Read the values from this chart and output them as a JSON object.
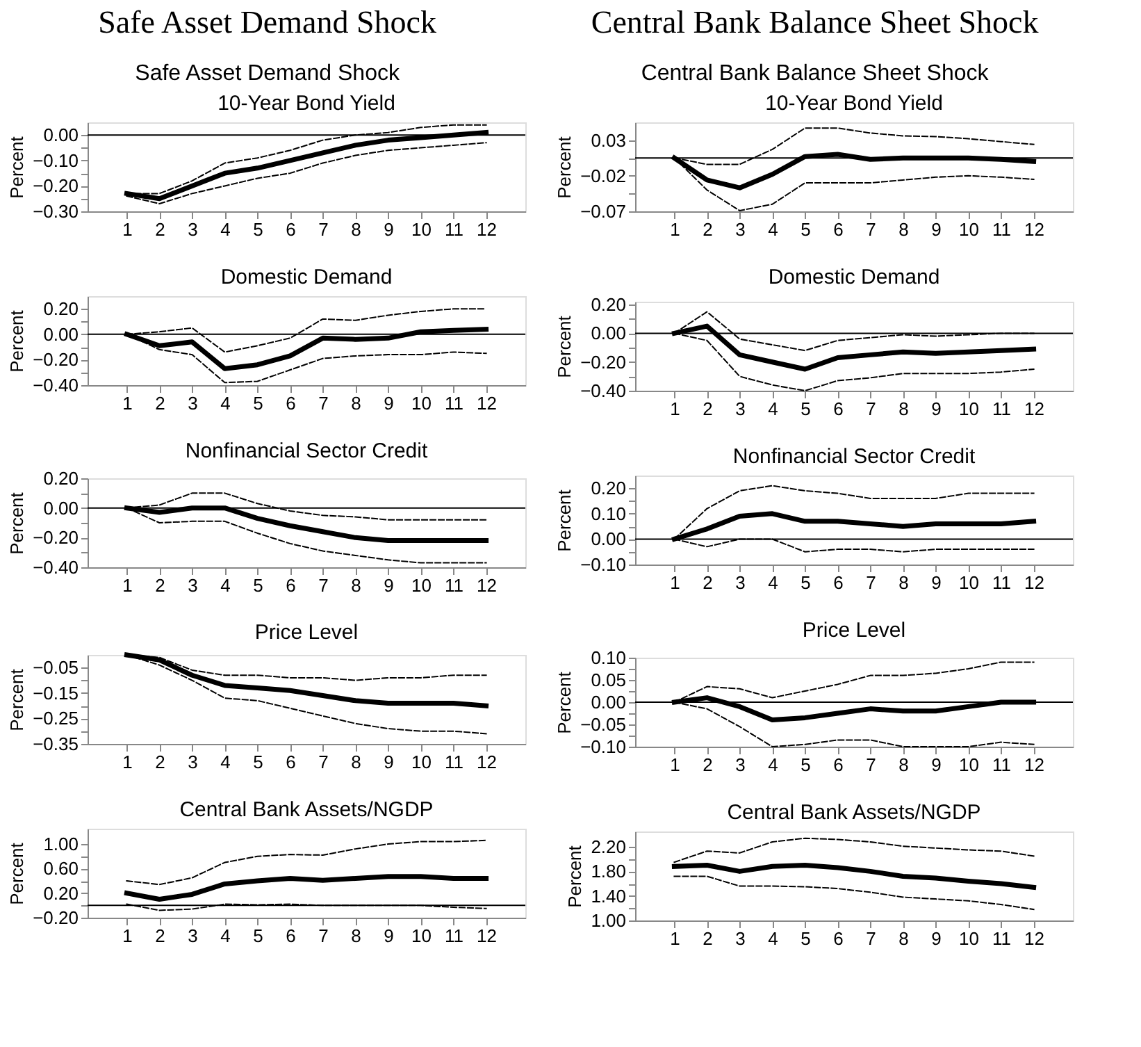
{
  "chart_data": [
    {
      "type": "line",
      "annotations": [
        "Safe Asset Demand Shock",
        "Safe Asset Demand Shock"
      ],
      "title": "10-Year Bond Yield",
      "ylabel": "Percent",
      "x": [
        1,
        2,
        3,
        4,
        5,
        6,
        7,
        8,
        9,
        10,
        11,
        12
      ],
      "xlim": [
        -0.2,
        13.2
      ],
      "xticks": [
        1,
        2,
        3,
        4,
        5,
        6,
        7,
        8,
        9,
        10,
        11,
        12
      ],
      "ylim": [
        -0.3,
        0.05
      ],
      "yticks": [
        {
          "value": 0,
          "label": "0.00"
        },
        {
          "value": -0.1,
          "label": "−0.10"
        },
        {
          "value": -0.2,
          "label": "−0.20"
        },
        {
          "value": -0.3,
          "label": "−0.30"
        },
        {
          "value": -0.05,
          "label": null
        },
        {
          "value": -0.15,
          "label": null
        },
        {
          "value": -0.25,
          "label": null
        }
      ],
      "ref_lines": [
        {
          "axis": "y",
          "value": 0
        }
      ],
      "grid": false,
      "series": [
        {
          "color": "#000000",
          "line_style": "dashed",
          "values": [
            -0.23,
            -0.23,
            -0.18,
            -0.11,
            -0.09,
            -0.06,
            -0.02,
            0.0,
            0.01,
            0.03,
            0.04,
            0.04
          ]
        },
        {
          "color": "#000000",
          "line_style": "dashed",
          "values": [
            -0.24,
            -0.27,
            -0.23,
            -0.2,
            -0.17,
            -0.15,
            -0.11,
            -0.08,
            -0.06,
            -0.05,
            -0.04,
            -0.03
          ]
        },
        {
          "color": "#000000",
          "line_style": "solid",
          "values": [
            -0.23,
            -0.25,
            -0.2,
            -0.15,
            -0.13,
            -0.1,
            -0.07,
            -0.04,
            -0.02,
            -0.01,
            0.0,
            0.01
          ]
        }
      ]
    },
    {
      "type": "line",
      "title": "Domestic Demand",
      "ylabel": "Percent",
      "x": [
        1,
        2,
        3,
        4,
        5,
        6,
        7,
        8,
        9,
        10,
        11,
        12
      ],
      "xlim": [
        -0.2,
        13.2
      ],
      "xticks": [
        1,
        2,
        3,
        4,
        5,
        6,
        7,
        8,
        9,
        10,
        11,
        12
      ],
      "ylim": [
        -0.4,
        0.3
      ],
      "yticks": [
        {
          "value": 0.2,
          "label": "0.20"
        },
        {
          "value": 0,
          "label": "0.00"
        },
        {
          "value": -0.2,
          "label": "−0.20"
        },
        {
          "value": -0.4,
          "label": "−0.40"
        },
        {
          "value": 0.1,
          "label": null
        },
        {
          "value": -0.1,
          "label": null
        },
        {
          "value": -0.3,
          "label": null
        }
      ],
      "ref_lines": [
        {
          "axis": "y",
          "value": 0
        }
      ],
      "grid": false,
      "series": [
        {
          "color": "#000000",
          "line_style": "dashed",
          "values": [
            0.0,
            0.02,
            0.05,
            -0.14,
            -0.09,
            -0.03,
            0.12,
            0.11,
            0.15,
            0.18,
            0.2,
            0.2
          ]
        },
        {
          "color": "#000000",
          "line_style": "dashed",
          "values": [
            0.0,
            -0.12,
            -0.16,
            -0.38,
            -0.37,
            -0.28,
            -0.19,
            -0.17,
            -0.16,
            -0.16,
            -0.14,
            -0.15
          ]
        },
        {
          "color": "#000000",
          "line_style": "solid",
          "values": [
            0.0,
            -0.09,
            -0.06,
            -0.27,
            -0.24,
            -0.17,
            -0.03,
            -0.04,
            -0.03,
            0.02,
            0.03,
            0.04
          ]
        }
      ]
    },
    {
      "type": "line",
      "title": "Nonfinancial Sector Credit",
      "ylabel": "Percent",
      "x": [
        1,
        2,
        3,
        4,
        5,
        6,
        7,
        8,
        9,
        10,
        11,
        12
      ],
      "xlim": [
        -0.2,
        13.2
      ],
      "xticks": [
        1,
        2,
        3,
        4,
        5,
        6,
        7,
        8,
        9,
        10,
        11,
        12
      ],
      "ylim": [
        -0.4,
        0.2
      ],
      "yticks": [
        {
          "value": 0.2,
          "label": "0.20"
        },
        {
          "value": 0,
          "label": "0.00"
        },
        {
          "value": -0.2,
          "label": "−0.20"
        },
        {
          "value": -0.4,
          "label": "−0.40"
        },
        {
          "value": 0.1,
          "label": null
        },
        {
          "value": -0.1,
          "label": null
        },
        {
          "value": -0.3,
          "label": null
        }
      ],
      "ref_lines": [
        {
          "axis": "y",
          "value": 0
        }
      ],
      "grid": false,
      "series": [
        {
          "color": "#000000",
          "line_style": "dashed",
          "values": [
            0.0,
            0.02,
            0.1,
            0.1,
            0.03,
            -0.02,
            -0.05,
            -0.06,
            -0.08,
            -0.08,
            -0.08,
            -0.08
          ]
        },
        {
          "color": "#000000",
          "line_style": "dashed",
          "values": [
            0.0,
            -0.1,
            -0.09,
            -0.09,
            -0.17,
            -0.24,
            -0.29,
            -0.32,
            -0.35,
            -0.37,
            -0.37,
            -0.37
          ]
        },
        {
          "color": "#000000",
          "line_style": "solid",
          "values": [
            0.0,
            -0.03,
            0.0,
            0.0,
            -0.07,
            -0.12,
            -0.16,
            -0.2,
            -0.22,
            -0.22,
            -0.22,
            -0.22
          ]
        }
      ]
    },
    {
      "type": "line",
      "title": "Price Level",
      "ylabel": "Percent",
      "x": [
        1,
        2,
        3,
        4,
        5,
        6,
        7,
        8,
        9,
        10,
        11,
        12
      ],
      "xlim": [
        -0.2,
        13.2
      ],
      "xticks": [
        1,
        2,
        3,
        4,
        5,
        6,
        7,
        8,
        9,
        10,
        11,
        12
      ],
      "ylim": [
        -0.35,
        0.0
      ],
      "yticks": [
        {
          "value": -0.05,
          "label": "−0.05"
        },
        {
          "value": -0.15,
          "label": "−0.15"
        },
        {
          "value": -0.25,
          "label": "−0.25"
        },
        {
          "value": -0.35,
          "label": "−0.35"
        },
        {
          "value": -0.1,
          "label": null
        },
        {
          "value": -0.2,
          "label": null
        },
        {
          "value": -0.3,
          "label": null
        }
      ],
      "grid": false,
      "series": [
        {
          "color": "#000000",
          "line_style": "dashed",
          "values": [
            0.0,
            -0.01,
            -0.06,
            -0.08,
            -0.08,
            -0.09,
            -0.09,
            -0.1,
            -0.09,
            -0.09,
            -0.08,
            -0.08
          ]
        },
        {
          "color": "#000000",
          "line_style": "dashed",
          "values": [
            0.0,
            -0.04,
            -0.1,
            -0.17,
            -0.18,
            -0.21,
            -0.24,
            -0.27,
            -0.29,
            -0.3,
            -0.3,
            -0.31
          ]
        },
        {
          "color": "#000000",
          "line_style": "solid",
          "values": [
            0.0,
            -0.02,
            -0.08,
            -0.12,
            -0.13,
            -0.14,
            -0.16,
            -0.18,
            -0.19,
            -0.19,
            -0.19,
            -0.2
          ]
        }
      ]
    },
    {
      "type": "line",
      "title": "Central Bank Assets/NGDP",
      "ylabel": "Percent",
      "x": [
        1,
        2,
        3,
        4,
        5,
        6,
        7,
        8,
        9,
        10,
        11,
        12
      ],
      "xlim": [
        -0.2,
        13.2
      ],
      "xticks": [
        1,
        2,
        3,
        4,
        5,
        6,
        7,
        8,
        9,
        10,
        11,
        12
      ],
      "ylim": [
        -0.2,
        1.25
      ],
      "yticks": [
        {
          "value": 1.0,
          "label": "1.00"
        },
        {
          "value": 0.6,
          "label": "0.60"
        },
        {
          "value": 0.2,
          "label": "0.20"
        },
        {
          "value": -0.2,
          "label": "−0.20"
        },
        {
          "value": 0.8,
          "label": null
        },
        {
          "value": 0.4,
          "label": null
        },
        {
          "value": 0.0,
          "label": null
        }
      ],
      "ref_lines": [
        {
          "axis": "y",
          "value": 0
        }
      ],
      "grid": false,
      "series": [
        {
          "color": "#000000",
          "line_style": "dashed",
          "values": [
            0.4,
            0.34,
            0.45,
            0.7,
            0.8,
            0.83,
            0.82,
            0.92,
            1.0,
            1.04,
            1.04,
            1.06
          ]
        },
        {
          "color": "#000000",
          "line_style": "dashed",
          "values": [
            0.02,
            -0.08,
            -0.06,
            0.02,
            0.01,
            0.02,
            0.0,
            0.0,
            0.0,
            0.0,
            -0.03,
            -0.05
          ]
        },
        {
          "color": "#000000",
          "line_style": "solid",
          "values": [
            0.2,
            0.1,
            0.18,
            0.35,
            0.4,
            0.44,
            0.41,
            0.44,
            0.47,
            0.47,
            0.44,
            0.44
          ]
        }
      ]
    },
    {
      "type": "line",
      "annotations": [
        "Central Bank Balance Sheet Shock",
        "Central Bank Balance Sheet Shock"
      ],
      "title": "10-Year Bond Yield",
      "ylabel": "Percent",
      "x": [
        1,
        2,
        3,
        4,
        5,
        6,
        7,
        8,
        9,
        10,
        11,
        12
      ],
      "xlim": [
        -0.2,
        13.2
      ],
      "xticks": [
        1,
        2,
        3,
        4,
        5,
        6,
        7,
        8,
        9,
        10,
        11,
        12
      ],
      "ylim": [
        -0.07,
        0.055
      ],
      "yticks": [
        {
          "value": 0.03,
          "label": "0.03"
        },
        {
          "value": -0.02,
          "label": "−0.02"
        },
        {
          "value": -0.07,
          "label": "−0.07"
        },
        {
          "value": 0.005,
          "label": null
        },
        {
          "value": -0.045,
          "label": null
        }
      ],
      "ref_lines": [
        {
          "axis": "y",
          "value": 0.005
        }
      ],
      "grid": false,
      "series": [
        {
          "color": "#000000",
          "line_style": "dashed",
          "values": [
            0.005,
            -0.004,
            -0.004,
            0.017,
            0.047,
            0.047,
            0.04,
            0.036,
            0.035,
            0.032,
            0.028,
            0.024
          ]
        },
        {
          "color": "#000000",
          "line_style": "dashed",
          "values": [
            0.005,
            -0.04,
            -0.069,
            -0.06,
            -0.03,
            -0.03,
            -0.03,
            -0.026,
            -0.022,
            -0.02,
            -0.022,
            -0.025
          ]
        },
        {
          "color": "#000000",
          "line_style": "solid",
          "values": [
            0.005,
            -0.026,
            -0.037,
            -0.018,
            0.007,
            0.01,
            0.003,
            0.005,
            0.005,
            0.005,
            0.003,
            0.0
          ]
        }
      ]
    },
    {
      "type": "line",
      "title": "Domestic Demand",
      "ylabel": "Percent",
      "x": [
        1,
        2,
        3,
        4,
        5,
        6,
        7,
        8,
        9,
        10,
        11,
        12
      ],
      "xlim": [
        -0.2,
        13.2
      ],
      "xticks": [
        1,
        2,
        3,
        4,
        5,
        6,
        7,
        8,
        9,
        10,
        11,
        12
      ],
      "ylim": [
        -0.4,
        0.22
      ],
      "yticks": [
        {
          "value": 0.2,
          "label": "0.20"
        },
        {
          "value": 0,
          "label": "0.00"
        },
        {
          "value": -0.2,
          "label": "−0.20"
        },
        {
          "value": -0.4,
          "label": "−0.40"
        },
        {
          "value": 0.1,
          "label": null
        },
        {
          "value": -0.1,
          "label": null
        },
        {
          "value": -0.3,
          "label": null
        }
      ],
      "ref_lines": [
        {
          "axis": "y",
          "value": 0
        }
      ],
      "grid": false,
      "series": [
        {
          "color": "#000000",
          "line_style": "dashed",
          "values": [
            0.0,
            0.15,
            -0.04,
            -0.08,
            -0.12,
            -0.05,
            -0.03,
            -0.01,
            -0.02,
            -0.01,
            0.0,
            0.0
          ]
        },
        {
          "color": "#000000",
          "line_style": "dashed",
          "values": [
            0.0,
            -0.05,
            -0.3,
            -0.36,
            -0.4,
            -0.33,
            -0.31,
            -0.28,
            -0.28,
            -0.28,
            -0.27,
            -0.25
          ]
        },
        {
          "color": "#000000",
          "line_style": "solid",
          "values": [
            0.0,
            0.05,
            -0.15,
            -0.2,
            -0.25,
            -0.17,
            -0.15,
            -0.13,
            -0.14,
            -0.13,
            -0.12,
            -0.11
          ]
        }
      ]
    },
    {
      "type": "line",
      "title": "Nonfinancial Sector Credit",
      "ylabel": "Percent",
      "x": [
        1,
        2,
        3,
        4,
        5,
        6,
        7,
        8,
        9,
        10,
        11,
        12
      ],
      "xlim": [
        -0.2,
        13.2
      ],
      "xticks": [
        1,
        2,
        3,
        4,
        5,
        6,
        7,
        8,
        9,
        10,
        11,
        12
      ],
      "ylim": [
        -0.1,
        0.25
      ],
      "yticks": [
        {
          "value": 0.2,
          "label": "0.20"
        },
        {
          "value": 0.1,
          "label": "0.10"
        },
        {
          "value": 0,
          "label": "0.00"
        },
        {
          "value": -0.1,
          "label": "−0.10"
        },
        {
          "value": 0.15,
          "label": null
        },
        {
          "value": 0.05,
          "label": null
        },
        {
          "value": -0.05,
          "label": null
        }
      ],
      "ref_lines": [
        {
          "axis": "y",
          "value": 0
        }
      ],
      "grid": false,
      "series": [
        {
          "color": "#000000",
          "line_style": "dashed",
          "values": [
            0.0,
            0.12,
            0.19,
            0.21,
            0.19,
            0.18,
            0.16,
            0.16,
            0.16,
            0.18,
            0.18,
            0.18
          ]
        },
        {
          "color": "#000000",
          "line_style": "dashed",
          "values": [
            0.0,
            -0.03,
            0.0,
            0.0,
            -0.05,
            -0.04,
            -0.04,
            -0.05,
            -0.04,
            -0.04,
            -0.04,
            -0.04
          ]
        },
        {
          "color": "#000000",
          "line_style": "solid",
          "values": [
            0.0,
            0.04,
            0.09,
            0.1,
            0.07,
            0.07,
            0.06,
            0.05,
            0.06,
            0.06,
            0.06,
            0.07
          ]
        }
      ]
    },
    {
      "type": "line",
      "title": "Price Level",
      "ylabel": "Percent",
      "x": [
        1,
        2,
        3,
        4,
        5,
        6,
        7,
        8,
        9,
        10,
        11,
        12
      ],
      "xlim": [
        -0.2,
        13.2
      ],
      "xticks": [
        1,
        2,
        3,
        4,
        5,
        6,
        7,
        8,
        9,
        10,
        11,
        12
      ],
      "ylim": [
        -0.1,
        0.1
      ],
      "yticks": [
        {
          "value": 0.1,
          "label": "0.10"
        },
        {
          "value": 0.05,
          "label": "0.05"
        },
        {
          "value": 0,
          "label": "0.00"
        },
        {
          "value": -0.05,
          "label": "−0.05"
        },
        {
          "value": -0.1,
          "label": "−0.10"
        },
        {
          "value": 0.075,
          "label": null
        },
        {
          "value": 0.025,
          "label": null
        },
        {
          "value": -0.025,
          "label": null
        },
        {
          "value": -0.075,
          "label": null
        }
      ],
      "ref_lines": [
        {
          "axis": "y",
          "value": 0
        }
      ],
      "grid": false,
      "series": [
        {
          "color": "#000000",
          "line_style": "dashed",
          "values": [
            0.0,
            0.035,
            0.03,
            0.01,
            0.025,
            0.04,
            0.06,
            0.06,
            0.065,
            0.075,
            0.09,
            0.09
          ]
        },
        {
          "color": "#000000",
          "line_style": "dashed",
          "values": [
            0.0,
            -0.015,
            -0.055,
            -0.1,
            -0.095,
            -0.085,
            -0.085,
            -0.1,
            -0.1,
            -0.1,
            -0.09,
            -0.095
          ]
        },
        {
          "color": "#000000",
          "line_style": "solid",
          "values": [
            0.0,
            0.01,
            -0.01,
            -0.04,
            -0.035,
            -0.025,
            -0.015,
            -0.02,
            -0.02,
            -0.01,
            0.0,
            0.0
          ]
        }
      ]
    },
    {
      "type": "line",
      "title": "Central Bank Assets/NGDP",
      "ylabel": "Percent",
      "x": [
        1,
        2,
        3,
        4,
        5,
        6,
        7,
        8,
        9,
        10,
        11,
        12
      ],
      "xlim": [
        -0.2,
        13.2
      ],
      "xticks": [
        1,
        2,
        3,
        4,
        5,
        6,
        7,
        8,
        9,
        10,
        11,
        12
      ],
      "ylim": [
        1.0,
        2.45
      ],
      "yticks": [
        {
          "value": 2.2,
          "label": "2.20"
        },
        {
          "value": 1.8,
          "label": "1.80"
        },
        {
          "value": 1.4,
          "label": "1.40"
        },
        {
          "value": 1.0,
          "label": "1.00"
        },
        {
          "value": 2.0,
          "label": null
        },
        {
          "value": 1.6,
          "label": null
        },
        {
          "value": 1.2,
          "label": null
        }
      ],
      "grid": false,
      "series": [
        {
          "color": "#000000",
          "line_style": "dashed",
          "values": [
            1.95,
            2.13,
            2.1,
            2.28,
            2.34,
            2.32,
            2.28,
            2.21,
            2.18,
            2.15,
            2.13,
            2.05
          ]
        },
        {
          "color": "#000000",
          "line_style": "dashed",
          "values": [
            1.72,
            1.72,
            1.56,
            1.56,
            1.55,
            1.52,
            1.46,
            1.38,
            1.35,
            1.32,
            1.26,
            1.18
          ]
        },
        {
          "color": "#000000",
          "line_style": "solid",
          "values": [
            1.88,
            1.9,
            1.8,
            1.88,
            1.9,
            1.86,
            1.8,
            1.72,
            1.69,
            1.64,
            1.6,
            1.54
          ]
        }
      ]
    }
  ]
}
